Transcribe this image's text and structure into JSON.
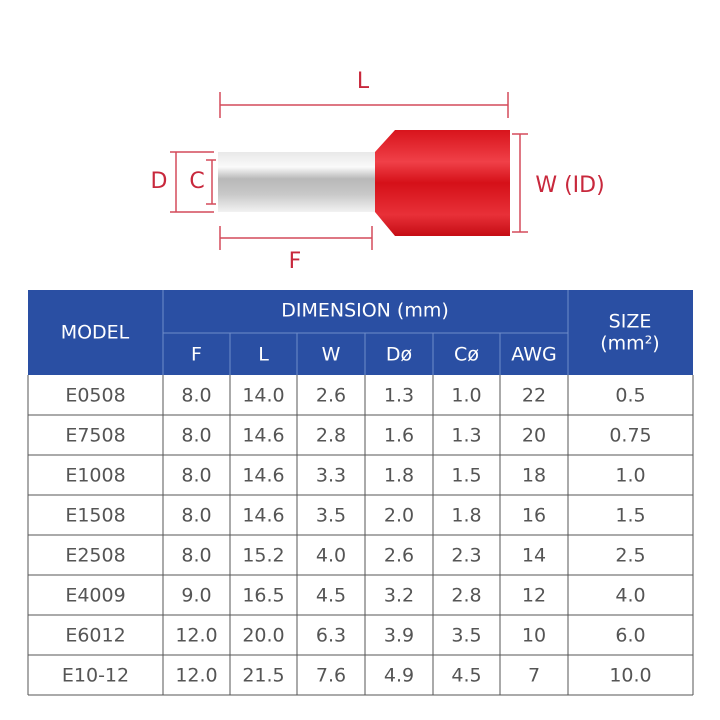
{
  "diagram": {
    "length": "L",
    "outer_diameter": "D",
    "inner_diameter": "C",
    "pin_length": "F",
    "width": "W (ID)"
  },
  "table": {
    "header": {
      "model": "MODEL",
      "dimension": "DIMENSION (mm)",
      "columns": [
        "F",
        "L",
        "W",
        "Dø",
        "Cø",
        "AWG"
      ],
      "size": {
        "title": "SIZE",
        "unit": "(mm²)"
      }
    },
    "rows": [
      [
        "E0508",
        "8.0",
        "14.0",
        "2.6",
        "1.3",
        "1.0",
        "22",
        "0.5"
      ],
      [
        "E7508",
        "8.0",
        "14.6",
        "2.8",
        "1.6",
        "1.3",
        "20",
        "0.75"
      ],
      [
        "E1008",
        "8.0",
        "14.6",
        "3.3",
        "1.8",
        "1.5",
        "18",
        "1.0"
      ],
      [
        "E1508",
        "8.0",
        "14.6",
        "3.5",
        "2.0",
        "1.8",
        "16",
        "1.5"
      ],
      [
        "E2508",
        "8.0",
        "15.2",
        "4.0",
        "2.6",
        "2.3",
        "14",
        "2.5"
      ],
      [
        "E4009",
        "9.0",
        "16.5",
        "4.5",
        "3.2",
        "2.8",
        "12",
        "4.0"
      ],
      [
        "E6012",
        "12.0",
        "20.0",
        "6.3",
        "3.9",
        "3.5",
        "10",
        "6.0"
      ],
      [
        "E10-12",
        "12.0",
        "21.5",
        "7.6",
        "4.9",
        "4.5",
        "7",
        "10.0"
      ]
    ]
  }
}
